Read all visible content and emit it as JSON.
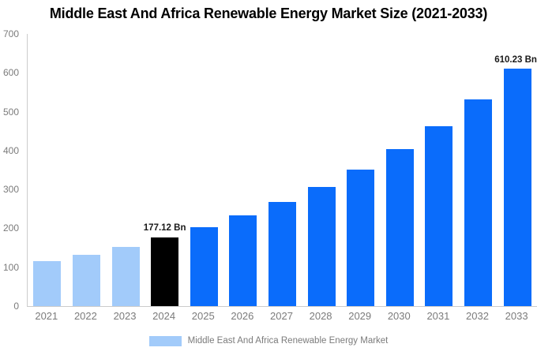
{
  "chart_data": {
    "type": "bar",
    "title": "Middle East And Africa Renewable Energy Market Size (2021-2033)",
    "legend_label": "Middle East And Africa Renewable Energy Market",
    "unit": "Bn",
    "ylim": [
      0,
      700
    ],
    "yticks": [
      0,
      100,
      200,
      300,
      400,
      500,
      600,
      700
    ],
    "grid": "off",
    "legend_position": "bottom-center",
    "colors": {
      "historical": "#A2CBFA",
      "highlight": "#000000",
      "forecast": "#0A6CFB",
      "axis_line": "#cccccc",
      "tick_text": "#7b7b7b",
      "label_text": "#1a1a1a"
    },
    "categories": [
      "2021",
      "2022",
      "2023",
      "2024",
      "2025",
      "2026",
      "2027",
      "2028",
      "2029",
      "2030",
      "2031",
      "2032",
      "2033"
    ],
    "values": [
      115,
      133,
      152,
      177.12,
      203,
      233,
      267,
      307,
      352,
      404,
      463,
      532,
      610.23
    ],
    "points": [
      {
        "year": "2021",
        "value": 115,
        "segment": "historical"
      },
      {
        "year": "2022",
        "value": 133,
        "segment": "historical"
      },
      {
        "year": "2023",
        "value": 152,
        "segment": "historical"
      },
      {
        "year": "2024",
        "value": 177.12,
        "segment": "highlight",
        "label": "177.12 Bn",
        "label_align": "center"
      },
      {
        "year": "2025",
        "value": 203,
        "segment": "forecast"
      },
      {
        "year": "2026",
        "value": 233,
        "segment": "forecast"
      },
      {
        "year": "2027",
        "value": 267,
        "segment": "forecast"
      },
      {
        "year": "2028",
        "value": 307,
        "segment": "forecast"
      },
      {
        "year": "2029",
        "value": 352,
        "segment": "forecast"
      },
      {
        "year": "2030",
        "value": 404,
        "segment": "forecast"
      },
      {
        "year": "2031",
        "value": 463,
        "segment": "forecast"
      },
      {
        "year": "2032",
        "value": 532,
        "segment": "forecast"
      },
      {
        "year": "2033",
        "value": 610.23,
        "segment": "forecast",
        "label": "610.23 Bn",
        "label_align": "right"
      }
    ]
  }
}
